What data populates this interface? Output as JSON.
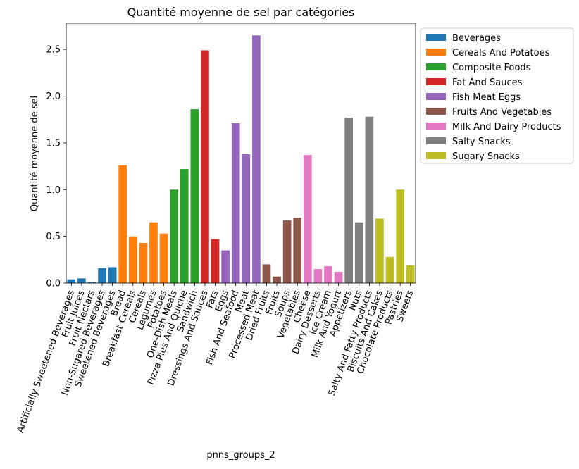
{
  "chart_data": {
    "type": "bar",
    "title": "Quantité moyenne de sel par catégories",
    "xlabel": "pnns_groups_2",
    "ylabel": "Quantité moyenne de sel",
    "ylim": [
      0,
      2.78
    ],
    "yticks": [
      "0.0",
      "0.5",
      "1.0",
      "1.5",
      "2.0",
      "2.5"
    ],
    "legend_position": "outside-right",
    "grid": false,
    "groups": [
      {
        "name": "Beverages",
        "color": "#1f77b4"
      },
      {
        "name": "Cereals And Potatoes",
        "color": "#ff7f0e"
      },
      {
        "name": "Composite Foods",
        "color": "#2ca02c"
      },
      {
        "name": "Fat And Sauces",
        "color": "#d62728"
      },
      {
        "name": "Fish Meat Eggs",
        "color": "#9467bd"
      },
      {
        "name": "Fruits And Vegetables",
        "color": "#8c564b"
      },
      {
        "name": "Milk And Dairy Products",
        "color": "#e377c2"
      },
      {
        "name": "Salty Snacks",
        "color": "#7f7f7f"
      },
      {
        "name": "Sugary Snacks",
        "color": "#bcbd22"
      }
    ],
    "bars": [
      {
        "category": "Artificially Sweetened Beverages",
        "group": 0,
        "value": 0.04
      },
      {
        "category": "Fruit Juices",
        "group": 0,
        "value": 0.05
      },
      {
        "category": "Fruit Nectars",
        "group": 0,
        "value": 0.01
      },
      {
        "category": "Non-Sugared Beverages",
        "group": 0,
        "value": 0.16
      },
      {
        "category": "Sweetened Beverages",
        "group": 0,
        "value": 0.17
      },
      {
        "category": "Bread",
        "group": 1,
        "value": 1.26
      },
      {
        "category": "Breakfast Cereals",
        "group": 1,
        "value": 0.5
      },
      {
        "category": "Cereals",
        "group": 1,
        "value": 0.43
      },
      {
        "category": "Legumes",
        "group": 1,
        "value": 0.65
      },
      {
        "category": "Potatoes",
        "group": 1,
        "value": 0.53
      },
      {
        "category": "One-Dish Meals",
        "group": 2,
        "value": 1.0
      },
      {
        "category": "Pizza Pies And Quiche",
        "group": 2,
        "value": 1.22
      },
      {
        "category": "Sandwich",
        "group": 2,
        "value": 1.86
      },
      {
        "category": "Dressings And Sauces",
        "group": 3,
        "value": 2.49
      },
      {
        "category": "Fats",
        "group": 3,
        "value": 0.47
      },
      {
        "category": "Eggs",
        "group": 4,
        "value": 0.35
      },
      {
        "category": "Fish And Seafood",
        "group": 4,
        "value": 1.71
      },
      {
        "category": "Meat",
        "group": 4,
        "value": 1.38
      },
      {
        "category": "Processed Meat",
        "group": 4,
        "value": 2.65
      },
      {
        "category": "Dried Fruits",
        "group": 5,
        "value": 0.2
      },
      {
        "category": "Fruits",
        "group": 5,
        "value": 0.07
      },
      {
        "category": "Soups",
        "group": 5,
        "value": 0.67
      },
      {
        "category": "Vegetables",
        "group": 5,
        "value": 0.7
      },
      {
        "category": "Cheese",
        "group": 6,
        "value": 1.37
      },
      {
        "category": "Dairy Desserts",
        "group": 6,
        "value": 0.15
      },
      {
        "category": "Ice Cream",
        "group": 6,
        "value": 0.18
      },
      {
        "category": "Milk And Yogurt",
        "group": 6,
        "value": 0.12
      },
      {
        "category": "Appetizers",
        "group": 7,
        "value": 1.77
      },
      {
        "category": "Nuts",
        "group": 7,
        "value": 0.65
      },
      {
        "category": "Salty And Fatty Products",
        "group": 7,
        "value": 1.78
      },
      {
        "category": "Biscuits And Cakes",
        "group": 8,
        "value": 0.69
      },
      {
        "category": "Chocolate Products",
        "group": 8,
        "value": 0.28
      },
      {
        "category": "Pastries",
        "group": 8,
        "value": 1.0
      },
      {
        "category": "Sweets",
        "group": 8,
        "value": 0.19
      }
    ]
  }
}
